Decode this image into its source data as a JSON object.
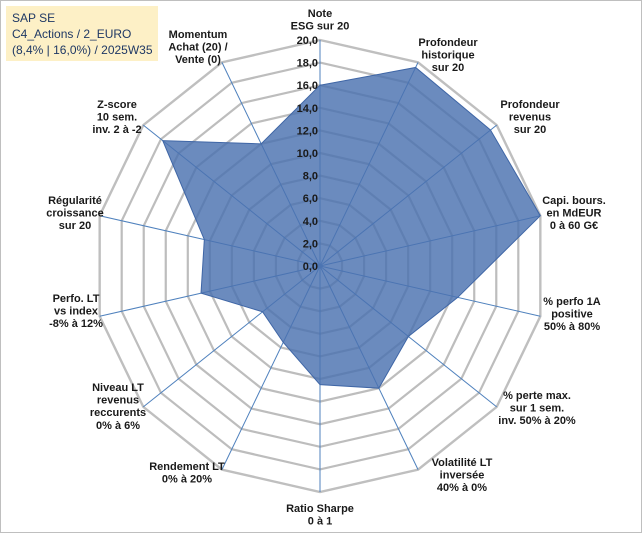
{
  "title_box": {
    "line1": "SAP SE",
    "line2": "C4_Actions / 2_EURO",
    "line3": "(8,4% | 16,0%) / 2025W35"
  },
  "chart_data": {
    "type": "radar",
    "rmin": 0,
    "rmax": 20,
    "tick_step": 2,
    "tick_labels": [
      "0,0",
      "2,0",
      "4,0",
      "6,0",
      "8,0",
      "10,0",
      "12,0",
      "14,0",
      "16,0",
      "18,0",
      "20,0"
    ],
    "axes": [
      {
        "label": [
          "Note",
          "ESG sur 20"
        ]
      },
      {
        "label": [
          "Profondeur",
          "historique",
          "sur 20"
        ]
      },
      {
        "label": [
          "Profondeur",
          "revenus",
          "sur 20"
        ]
      },
      {
        "label": [
          "Capi. bours.",
          "en MdEUR",
          "0 à 60 G€"
        ]
      },
      {
        "label": [
          "% perfo 1A",
          "positive",
          "50% à 80%"
        ]
      },
      {
        "label": [
          "% perte max.",
          "sur 1 sem.",
          "inv. 50% à 20%"
        ]
      },
      {
        "label": [
          "Volatilité LT",
          "inversée",
          "40% à 0%"
        ]
      },
      {
        "label": [
          "Ratio Sharpe",
          "0 à 1"
        ]
      },
      {
        "label": [
          "Rendement LT",
          "0% à 20%"
        ]
      },
      {
        "label": [
          "Niveau LT",
          "revenus",
          "reccurents",
          "0% à 6%"
        ]
      },
      {
        "label": [
          "Perfo. LT",
          "vs index",
          "-8% à 12%"
        ]
      },
      {
        "label": [
          "Régularité",
          "croissance",
          "sur 20"
        ]
      },
      {
        "label": [
          "Z-score",
          "10 sem.",
          "inv. 2 à -2"
        ]
      },
      {
        "label": [
          "Momentum",
          "Achat (20) /",
          "Vente (0)"
        ]
      }
    ],
    "series": [
      {
        "values": [
          16.0,
          19.5,
          19.3,
          20.0,
          12.5,
          10.0,
          12.0,
          10.5,
          7.5,
          6.5,
          10.8,
          10.5,
          17.8,
          12.0
        ],
        "color": "#4a72b0",
        "fill_opacity": 0.82
      }
    ],
    "grid": true,
    "colors": {
      "grid": "#bdbdbd",
      "spoke": "#4f81bd",
      "ring_minor": "#d9d9d9"
    }
  }
}
